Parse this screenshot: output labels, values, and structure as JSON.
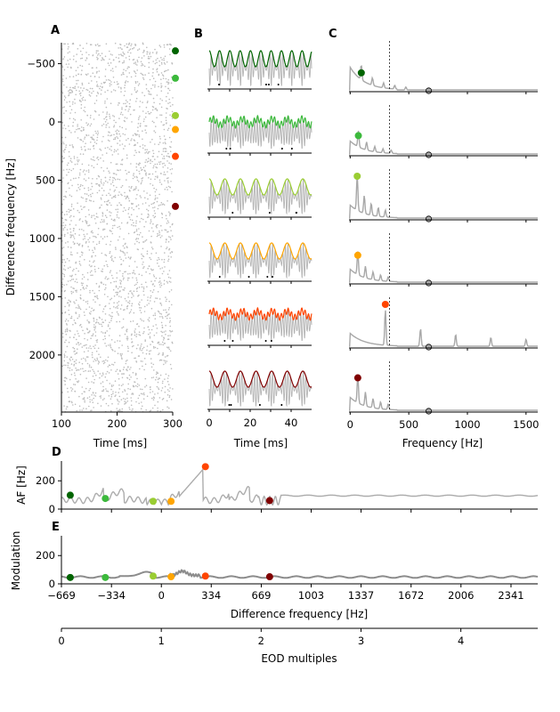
{
  "chart_data": [
    {
      "panel": "A",
      "type": "scatter",
      "xlabel": "Time [ms]",
      "ylabel": "Difference frequency [Hz]",
      "xlim": [
        100,
        300
      ],
      "ylim": [
        2490,
        -680
      ],
      "xticks": [
        "100",
        "200",
        "300"
      ],
      "yticks": [
        "−500",
        "0",
        "500",
        "1000",
        "1500",
        "2000"
      ],
      "ytick_values": [
        -500,
        0,
        500,
        1000,
        1500,
        2000
      ],
      "markers": [
        {
          "df": -610,
          "color": "#006400"
        },
        {
          "df": -375,
          "color": "#3cb93c"
        },
        {
          "df": -55,
          "color": "#9acd32"
        },
        {
          "df": 65,
          "color": "#ffa500"
        },
        {
          "df": 295,
          "color": "#ff4500"
        },
        {
          "df": 725,
          "color": "#800000"
        }
      ]
    },
    {
      "panel": "B",
      "type": "line",
      "xlabel": "Time [ms]",
      "xlim": [
        0,
        50
      ],
      "xticks": [
        "0",
        "20",
        "40"
      ],
      "rows": [
        {
          "color": "#006400",
          "df": -610
        },
        {
          "color": "#3cb93c",
          "df": -375
        },
        {
          "color": "#9acd32",
          "df": -55
        },
        {
          "color": "#ffa500",
          "df": 65
        },
        {
          "color": "#ff4500",
          "df": 295
        },
        {
          "color": "#800000",
          "df": 725
        }
      ]
    },
    {
      "panel": "C",
      "type": "line",
      "xlabel": "Frequency [Hz]",
      "xlim": [
        -10,
        1600
      ],
      "xticks": [
        "0",
        "500",
        "1000",
        "1500"
      ],
      "dashed_line_x": 335,
      "eod_marker_x": 670,
      "rows": [
        {
          "color": "#006400",
          "peak_x": 95,
          "peak_y": 0.42
        },
        {
          "color": "#3cb93c",
          "peak_x": 70,
          "peak_y": 0.45
        },
        {
          "color": "#9acd32",
          "peak_x": 60,
          "peak_y": 1.0
        },
        {
          "color": "#ffa500",
          "peak_x": 65,
          "peak_y": 0.65
        },
        {
          "color": "#ff4500",
          "peak_x": 300,
          "peak_y": 1.0
        },
        {
          "color": "#800000",
          "peak_x": 65,
          "peak_y": 0.78
        }
      ]
    },
    {
      "panel": "D",
      "type": "line",
      "ylabel": "AF [Hz]",
      "xlim": [
        -669,
        2520
      ],
      "ylim": [
        0,
        340
      ],
      "yticks": [
        "0",
        "200"
      ],
      "ytick_values": [
        0,
        200
      ],
      "markers": [
        {
          "x": -610,
          "y": 98,
          "color": "#006400"
        },
        {
          "x": -375,
          "y": 75,
          "color": "#3cb93c"
        },
        {
          "x": -55,
          "y": 55,
          "color": "#9acd32"
        },
        {
          "x": 65,
          "y": 55,
          "color": "#ffa500"
        },
        {
          "x": 295,
          "y": 300,
          "color": "#ff4500"
        },
        {
          "x": 725,
          "y": 60,
          "color": "#800000"
        }
      ]
    },
    {
      "panel": "E",
      "type": "line",
      "ylabel": "Modulation",
      "xlabel": "Difference frequency [Hz]",
      "xlim": [
        -669,
        2520
      ],
      "ylim": [
        0,
        340
      ],
      "yticks": [
        "0",
        "200"
      ],
      "ytick_values": [
        0,
        200
      ],
      "xticks": [
        "−669",
        "−334",
        "0",
        "334",
        "669",
        "1003",
        "1337",
        "1672",
        "2006",
        "2341"
      ],
      "xtick_values": [
        -669,
        -334,
        0,
        334,
        669,
        1003,
        1337,
        1672,
        2006,
        2341
      ],
      "markers": [
        {
          "x": -610,
          "y": 45,
          "color": "#006400"
        },
        {
          "x": -375,
          "y": 45,
          "color": "#3cb93c"
        },
        {
          "x": -55,
          "y": 55,
          "color": "#9acd32"
        },
        {
          "x": 65,
          "y": 50,
          "color": "#ffa500"
        },
        {
          "x": 295,
          "y": 55,
          "color": "#ff4500"
        },
        {
          "x": 725,
          "y": 50,
          "color": "#800000"
        }
      ]
    },
    {
      "panel": "EOD-axis",
      "type": "axis",
      "xlabel": "EOD multiples",
      "xlim": [
        0,
        4.77
      ],
      "xticks": [
        "0",
        "1",
        "2",
        "3",
        "4"
      ],
      "xtick_values": [
        0,
        1,
        2,
        3,
        4
      ]
    }
  ],
  "panel_labels": [
    "A",
    "B",
    "C",
    "D",
    "E"
  ]
}
